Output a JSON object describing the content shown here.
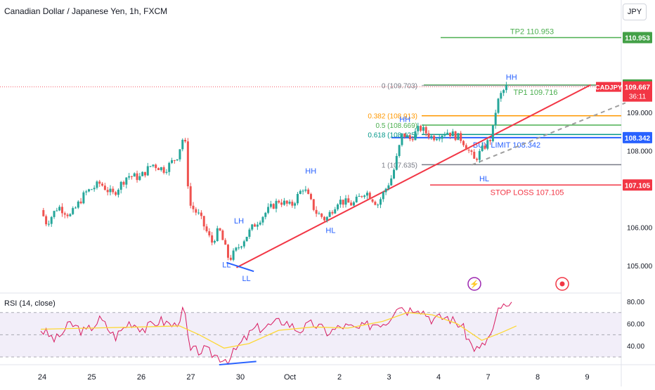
{
  "header": {
    "title": "Canadian Dollar / Japanese Yen, 1h, FXCM",
    "currency_button": "JPY"
  },
  "colors": {
    "up": "#26a69a",
    "down": "#ef5350",
    "trendline": "#f23645",
    "tp": "#4caf50",
    "tp_label_bg": "#43a047",
    "stop": "#f23645",
    "limit": "#2962ff",
    "fib_0_382": "#ff9800",
    "fib_0_5": "#4caf50",
    "fib_0_618": "#009688",
    "fib_1": "#787b86",
    "rsi": "#d81b60",
    "rsi_ma": "#fdd835",
    "rsi_band": "#ede7f6",
    "structure": "#2962ff"
  },
  "chart_data": {
    "type": "candlestick",
    "symbol": "CADJPY",
    "interval": "1h",
    "ylim": [
      104.5,
      111.5
    ],
    "x_tick_labels": [
      "24",
      "25",
      "26",
      "27",
      "30",
      "Oct",
      "2",
      "3",
      "4",
      "7",
      "8",
      "9"
    ],
    "y_tick_labels": [
      "109.000",
      "108.000",
      "106.000",
      "105.000"
    ],
    "y_tick_values": [
      109.0,
      108.0,
      106.0,
      105.0
    ],
    "price_anchors_note": "",
    "price_path": [
      {
        "t": 0,
        "p": 106.45
      },
      {
        "t": 0.12,
        "p": 106.1
      },
      {
        "t": 0.35,
        "p": 106.55
      },
      {
        "t": 0.6,
        "p": 106.3
      },
      {
        "t": 0.9,
        "p": 106.9
      },
      {
        "t": 1.2,
        "p": 107.15
      },
      {
        "t": 1.45,
        "p": 106.85
      },
      {
        "t": 1.75,
        "p": 107.35
      },
      {
        "t": 2.0,
        "p": 107.3
      },
      {
        "t": 2.25,
        "p": 107.65
      },
      {
        "t": 2.5,
        "p": 107.5
      },
      {
        "t": 2.75,
        "p": 107.85
      },
      {
        "t": 2.9,
        "p": 108.45
      },
      {
        "t": 3.0,
        "p": 106.6
      },
      {
        "t": 3.2,
        "p": 106.3
      },
      {
        "t": 3.45,
        "p": 105.6
      },
      {
        "t": 3.6,
        "p": 105.95
      },
      {
        "t": 3.8,
        "p": 105.15
      },
      {
        "t": 4.0,
        "p": 105.5
      },
      {
        "t": 4.3,
        "p": 106.05
      },
      {
        "t": 4.55,
        "p": 106.4
      },
      {
        "t": 4.8,
        "p": 106.7
      },
      {
        "t": 5.05,
        "p": 106.55
      },
      {
        "t": 5.3,
        "p": 107.05
      },
      {
        "t": 5.55,
        "p": 106.4
      },
      {
        "t": 5.75,
        "p": 106.2
      },
      {
        "t": 6.0,
        "p": 106.7
      },
      {
        "t": 6.3,
        "p": 106.6
      },
      {
        "t": 6.55,
        "p": 106.95
      },
      {
        "t": 6.8,
        "p": 106.6
      },
      {
        "t": 7.1,
        "p": 107.35
      },
      {
        "t": 7.3,
        "p": 108.45
      },
      {
        "t": 7.45,
        "p": 108.3
      },
      {
        "t": 7.65,
        "p": 108.6
      },
      {
        "t": 7.9,
        "p": 108.35
      },
      {
        "t": 8.2,
        "p": 108.5
      },
      {
        "t": 8.5,
        "p": 108.3
      },
      {
        "t": 8.75,
        "p": 107.75
      },
      {
        "t": 8.95,
        "p": 108.1
      },
      {
        "t": 9.1,
        "p": 108.35
      },
      {
        "t": 9.2,
        "p": 109.2
      },
      {
        "t": 9.3,
        "p": 109.5
      },
      {
        "t": 9.4,
        "p": 109.667
      }
    ],
    "trend_lines": [
      {
        "name": "support trendline",
        "from": {
          "t": 3.95,
          "p": 104.95
        },
        "to": {
          "t": 11.1,
          "p": 109.72
        }
      },
      {
        "name": "projection",
        "from": {
          "t": 8.7,
          "p": 107.63
        },
        "to": {
          "t": 11.8,
          "p": 109.25
        }
      }
    ],
    "levels": [
      {
        "name": "TP2",
        "value": 110.953,
        "label": "TP2 110.953",
        "axis_label": "110.953"
      },
      {
        "name": "TP1",
        "value": 109.716,
        "label": "TP1 109.716",
        "axis_label": "109.716"
      },
      {
        "name": "BUY LIMIT",
        "value": 108.342,
        "label": "BUY LIMIT 108.342",
        "axis_label": "108.342"
      },
      {
        "name": "STOP LOSS",
        "value": 107.105,
        "label": "STOP LOSS 107.105",
        "axis_label": "107.105"
      }
    ],
    "fib_levels": [
      {
        "ratio_label": "0 (109.703)",
        "value": 109.703
      },
      {
        "ratio_label": "0.382 (108.913)",
        "value": 108.913
      },
      {
        "ratio_label": "0.5 (108.669)",
        "value": 108.669
      },
      {
        "ratio_label": "0.618 (108.425)",
        "value": 108.425
      },
      {
        "ratio_label": "1 (107.635)",
        "value": 107.635
      }
    ],
    "current_price": {
      "symbol": "CADJPY",
      "value": "109.667",
      "countdown": "36:11"
    },
    "structure_labels": [
      {
        "text": "LL",
        "t": 3.75,
        "p": 104.95
      },
      {
        "text": "LH",
        "t": 4.0,
        "p": 106.1
      },
      {
        "text": "LL",
        "t": 4.15,
        "p": 104.6
      },
      {
        "text": "HH",
        "t": 5.45,
        "p": 107.4
      },
      {
        "text": "HL",
        "t": 5.85,
        "p": 105.85
      },
      {
        "text": "HH",
        "t": 7.35,
        "p": 108.75
      },
      {
        "text": "HL",
        "t": 8.95,
        "p": 107.2
      },
      {
        "text": "HH",
        "t": 9.5,
        "p": 109.85
      }
    ],
    "rsi": {
      "title": "RSI (14, close)",
      "ylim": [
        20,
        90
      ],
      "y_tick_labels": [
        "80.00",
        "60.00",
        "40.00"
      ],
      "y_tick_values": [
        80,
        60,
        40
      ],
      "band": [
        30,
        70
      ],
      "path": [
        {
          "t": 0,
          "p": 55
        },
        {
          "t": 0.3,
          "p": 45
        },
        {
          "t": 0.6,
          "p": 60
        },
        {
          "t": 0.9,
          "p": 52
        },
        {
          "t": 1.2,
          "p": 64
        },
        {
          "t": 1.5,
          "p": 48
        },
        {
          "t": 1.8,
          "p": 62
        },
        {
          "t": 2.1,
          "p": 55
        },
        {
          "t": 2.4,
          "p": 63
        },
        {
          "t": 2.7,
          "p": 58
        },
        {
          "t": 2.9,
          "p": 73
        },
        {
          "t": 3.0,
          "p": 35
        },
        {
          "t": 3.3,
          "p": 36
        },
        {
          "t": 3.6,
          "p": 30
        },
        {
          "t": 3.8,
          "p": 28
        },
        {
          "t": 4.0,
          "p": 40
        },
        {
          "t": 4.3,
          "p": 55
        },
        {
          "t": 4.6,
          "p": 58
        },
        {
          "t": 4.9,
          "p": 63
        },
        {
          "t": 5.2,
          "p": 54
        },
        {
          "t": 5.5,
          "p": 60
        },
        {
          "t": 5.8,
          "p": 52
        },
        {
          "t": 6.1,
          "p": 58
        },
        {
          "t": 6.4,
          "p": 55
        },
        {
          "t": 6.7,
          "p": 60
        },
        {
          "t": 7.0,
          "p": 62
        },
        {
          "t": 7.2,
          "p": 78
        },
        {
          "t": 7.4,
          "p": 72
        },
        {
          "t": 7.6,
          "p": 76
        },
        {
          "t": 7.9,
          "p": 64
        },
        {
          "t": 8.2,
          "p": 66
        },
        {
          "t": 8.5,
          "p": 58
        },
        {
          "t": 8.7,
          "p": 40
        },
        {
          "t": 8.85,
          "p": 36
        },
        {
          "t": 9.0,
          "p": 45
        },
        {
          "t": 9.15,
          "p": 55
        },
        {
          "t": 9.25,
          "p": 76
        },
        {
          "t": 9.4,
          "p": 74
        },
        {
          "t": 9.55,
          "p": 76
        }
      ],
      "ma_path": [
        {
          "t": 0,
          "p": 55
        },
        {
          "t": 1.0,
          "p": 56
        },
        {
          "t": 2.0,
          "p": 57
        },
        {
          "t": 2.8,
          "p": 58
        },
        {
          "t": 3.2,
          "p": 50
        },
        {
          "t": 3.7,
          "p": 38
        },
        {
          "t": 4.2,
          "p": 42
        },
        {
          "t": 4.8,
          "p": 54
        },
        {
          "t": 5.5,
          "p": 57
        },
        {
          "t": 6.2,
          "p": 56
        },
        {
          "t": 6.9,
          "p": 62
        },
        {
          "t": 7.4,
          "p": 70
        },
        {
          "t": 7.9,
          "p": 68
        },
        {
          "t": 8.4,
          "p": 60
        },
        {
          "t": 8.9,
          "p": 45
        },
        {
          "t": 9.3,
          "p": 52
        },
        {
          "t": 9.6,
          "p": 58
        }
      ],
      "divergence_line": {
        "from": {
          "t": 3.6,
          "p": 23
        },
        "to": {
          "t": 4.35,
          "p": 26
        }
      }
    }
  }
}
